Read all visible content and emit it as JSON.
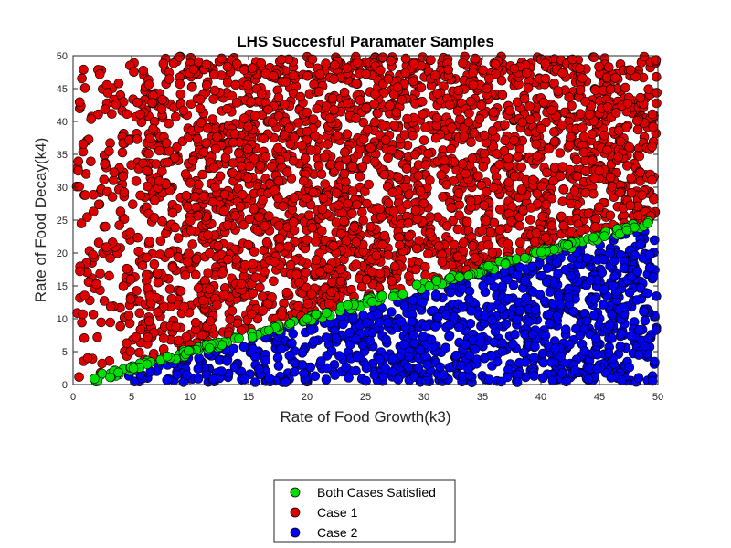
{
  "chart_data": {
    "type": "scatter",
    "title": "LHS Succesful Paramater Samples",
    "xlabel": "Rate of Food Growth(k3)",
    "ylabel": "Rate of Food Decay(k4)",
    "xlim": [
      0,
      50
    ],
    "ylim": [
      0,
      50
    ],
    "xticks": [
      0,
      5,
      10,
      15,
      20,
      25,
      30,
      35,
      40,
      45,
      50
    ],
    "yticks": [
      0,
      5,
      10,
      15,
      20,
      25,
      30,
      35,
      40,
      45,
      50
    ],
    "grid": false,
    "legend_position": "bottom-outside",
    "series": [
      {
        "name": "Both Cases Satisfied",
        "color": "#00dd00",
        "rule": "k4 approximately 0.5 * k3 (narrow band along the boundary)",
        "sample_points": [
          [
            3,
            1.5
          ],
          [
            7,
            3.4
          ],
          [
            12,
            6
          ],
          [
            16,
            8
          ],
          [
            21,
            10.5
          ],
          [
            25,
            12.6
          ],
          [
            29,
            14.5
          ],
          [
            33,
            16.5
          ],
          [
            37,
            18.5
          ],
          [
            41,
            20.4
          ],
          [
            45,
            22.6
          ],
          [
            49,
            24.5
          ]
        ]
      },
      {
        "name": "Case 1",
        "color": "#dd0000",
        "rule": "k4 above approximately 0.5 * k3 (region above the boundary, sparse at small k3)",
        "sample_points": [
          [
            1,
            49.5
          ],
          [
            2,
            36
          ],
          [
            5,
            25
          ],
          [
            10,
            40
          ],
          [
            20,
            30
          ],
          [
            30,
            45
          ],
          [
            40,
            35
          ],
          [
            48,
            28
          ]
        ]
      },
      {
        "name": "Case 2",
        "color": "#0000ee",
        "rule": "k4 below approximately 0.5 * k3 (region below the boundary)",
        "sample_points": [
          [
            2.2,
            0.5
          ],
          [
            5,
            1.5
          ],
          [
            10,
            2.5
          ],
          [
            20,
            5
          ],
          [
            30,
            8
          ],
          [
            40,
            12
          ],
          [
            48,
            20
          ]
        ]
      }
    ]
  }
}
